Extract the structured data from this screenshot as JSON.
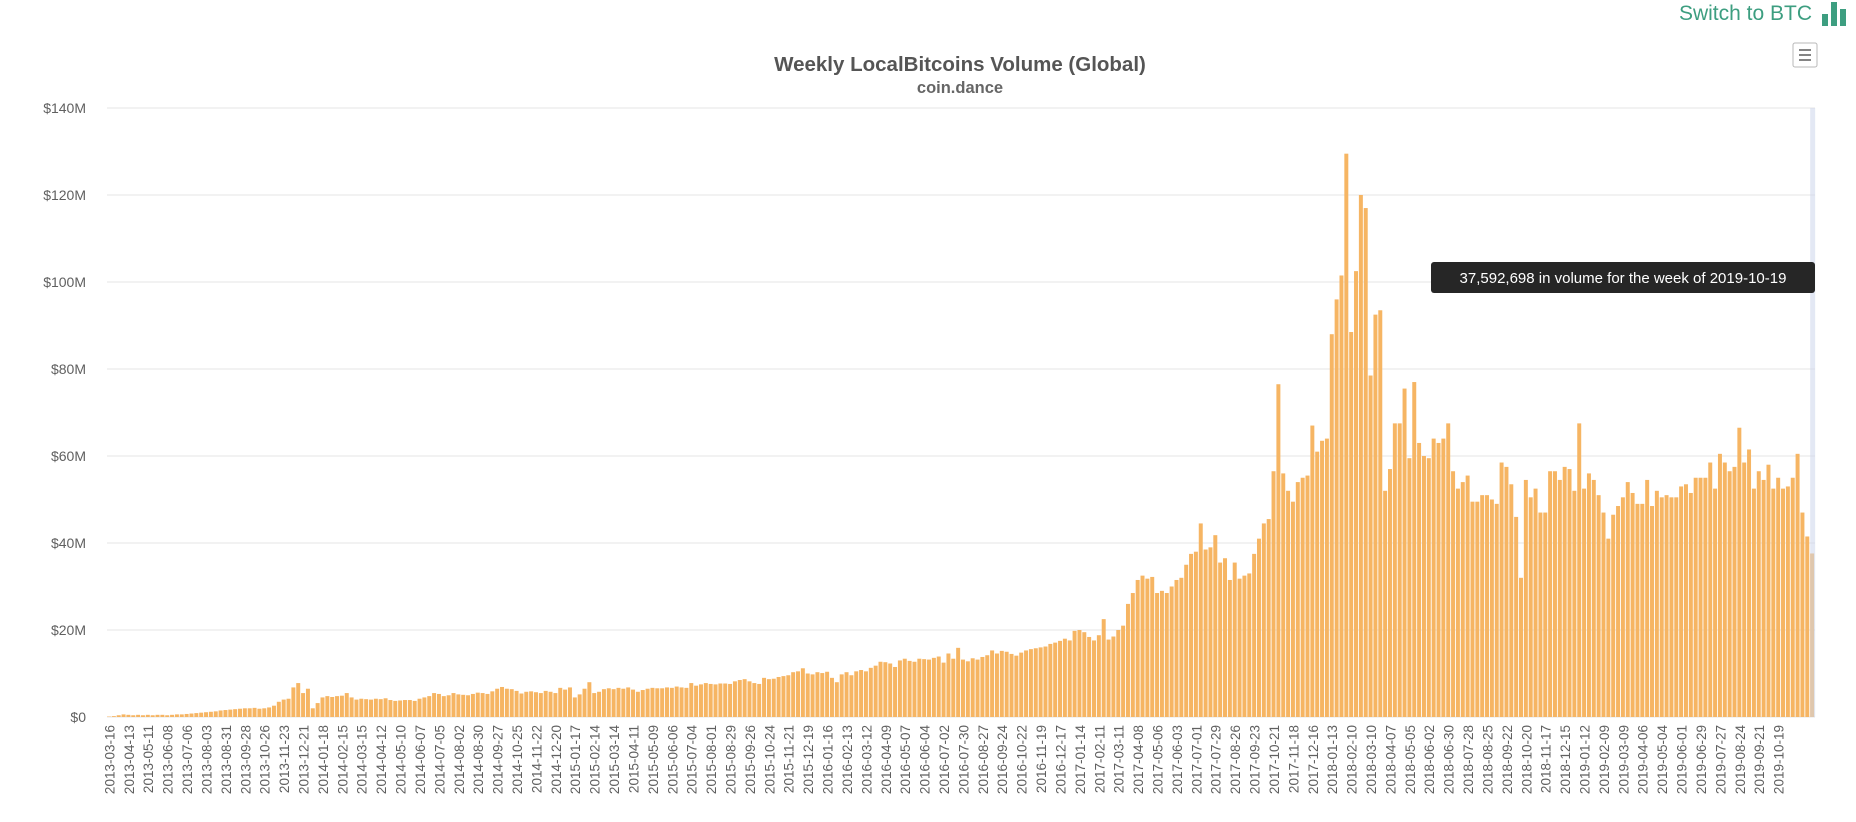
{
  "header": {
    "switch_label": "Switch to BTC",
    "switch_icon": "bar-chart-icon",
    "accent_color": "#3d9e80"
  },
  "menu": {
    "icon": "hamburger-menu-icon"
  },
  "chart_data": {
    "type": "bar",
    "title": "Weekly LocalBitcoins Volume (Global)",
    "subtitle": "coin.dance",
    "xlabel": "",
    "ylabel": "",
    "ylim": [
      0,
      140000000
    ],
    "y_ticks": [
      {
        "value": 0,
        "label": "$0"
      },
      {
        "value": 20000000,
        "label": "$20M"
      },
      {
        "value": 40000000,
        "label": "$40M"
      },
      {
        "value": 60000000,
        "label": "$60M"
      },
      {
        "value": 80000000,
        "label": "$80M"
      },
      {
        "value": 100000000,
        "label": "$100M"
      },
      {
        "value": 120000000,
        "label": "$120M"
      },
      {
        "value": 140000000,
        "label": "$140M"
      }
    ],
    "grid": true,
    "bar_color": "#f6b563",
    "x_start": "2013-03-16",
    "x_end": "2019-10-19",
    "x_tick_labels": [
      "2013-03-16",
      "2013-04-13",
      "2013-05-11",
      "2013-06-08",
      "2013-07-06",
      "2013-08-03",
      "2013-08-31",
      "2013-09-28",
      "2013-10-26",
      "2013-11-23",
      "2013-12-21",
      "2014-01-18",
      "2014-02-15",
      "2014-03-15",
      "2014-04-12",
      "2014-05-10",
      "2014-06-07",
      "2014-07-05",
      "2014-08-02",
      "2014-08-30",
      "2014-09-27",
      "2014-10-25",
      "2014-11-22",
      "2014-12-20",
      "2015-01-17",
      "2015-02-14",
      "2015-03-14",
      "2015-04-11",
      "2015-05-09",
      "2015-06-06",
      "2015-07-04",
      "2015-08-01",
      "2015-08-29",
      "2015-09-26",
      "2015-10-24",
      "2015-11-21",
      "2015-12-19",
      "2016-01-16",
      "2016-02-13",
      "2016-03-12",
      "2016-04-09",
      "2016-05-07",
      "2016-06-04",
      "2016-07-02",
      "2016-07-30",
      "2016-08-27",
      "2016-09-24",
      "2016-10-22",
      "2016-11-19",
      "2016-12-17",
      "2017-01-14",
      "2017-02-11",
      "2017-03-11",
      "2017-04-08",
      "2017-05-06",
      "2017-06-03",
      "2017-07-01",
      "2017-07-29",
      "2017-08-26",
      "2017-09-23",
      "2017-10-21",
      "2017-11-18",
      "2017-12-16",
      "2018-01-13",
      "2018-02-10",
      "2018-03-10",
      "2018-04-07",
      "2018-05-05",
      "2018-06-02",
      "2018-06-30",
      "2018-07-28",
      "2018-08-25",
      "2018-09-22",
      "2018-10-20",
      "2018-11-17",
      "2018-12-15",
      "2019-01-12",
      "2019-02-09",
      "2019-03-09",
      "2019-04-06",
      "2019-05-04",
      "2019-06-01",
      "2019-06-29",
      "2019-07-27",
      "2019-08-24",
      "2019-09-21",
      "2019-10-19"
    ],
    "values_millions": [
      0.1,
      0.2,
      0.4,
      0.6,
      0.5,
      0.4,
      0.5,
      0.4,
      0.5,
      0.4,
      0.5,
      0.5,
      0.4,
      0.5,
      0.6,
      0.6,
      0.7,
      0.8,
      0.9,
      1,
      1.1,
      1.2,
      1.3,
      1.5,
      1.6,
      1.7,
      1.8,
      1.9,
      2,
      2,
      2.1,
      1.9,
      2,
      2.2,
      2.6,
      3.5,
      4,
      4.2,
      6.8,
      7.8,
      5.5,
      6.5,
      2,
      3.2,
      4.5,
      4.8,
      4.6,
      4.8,
      4.9,
      5.5,
      4.5,
      4,
      4.2,
      4.1,
      4,
      4.2,
      4.1,
      4.3,
      3.9,
      3.7,
      3.8,
      3.9,
      3.9,
      3.7,
      4.2,
      4.5,
      4.8,
      5.5,
      5.3,
      4.8,
      5,
      5.5,
      5.2,
      5.1,
      5,
      5.3,
      5.6,
      5.5,
      5.3,
      5.9,
      6.5,
      6.9,
      6.5,
      6.4,
      6,
      5.4,
      5.8,
      5.9,
      5.7,
      5.5,
      6,
      5.8,
      5.5,
      6.7,
      6.3,
      6.8,
      4.5,
      5.2,
      6.5,
      8,
      5.5,
      5.8,
      6.4,
      6.6,
      6.4,
      6.7,
      6.5,
      6.8,
      6.3,
      5.8,
      6.2,
      6.5,
      6.7,
      6.6,
      6.6,
      6.8,
      6.7,
      7,
      6.8,
      6.7,
      7.8,
      7.2,
      7.5,
      7.8,
      7.6,
      7.5,
      7.7,
      7.7,
      7.6,
      8.2,
      8.5,
      8.7,
      8.2,
      7.8,
      7.6,
      9,
      8.7,
      8.8,
      9.2,
      9.4,
      9.6,
      10.3,
      10.5,
      11.2,
      10,
      9.8,
      10.3,
      10.1,
      10.4,
      9,
      8,
      9.8,
      10.3,
      9.6,
      10.5,
      10.8,
      10.5,
      11.3,
      11.8,
      12.7,
      12.6,
      12.3,
      11.5,
      13,
      13.4,
      12.9,
      12.7,
      13.4,
      13.3,
      13.2,
      13.6,
      13.9,
      12.5,
      14.6,
      13.4,
      15.9,
      13.2,
      12.8,
      13.5,
      13.2,
      13.8,
      14.2,
      15.3,
      14.6,
      15.2,
      15,
      14.5,
      14.1,
      14.8,
      15.3,
      15.6,
      15.8,
      16,
      16.2,
      16.8,
      17.1,
      17.5,
      18,
      17.6,
      19.8,
      20,
      19.5,
      18.4,
      17.6,
      18.8,
      22.5,
      17.8,
      18.5,
      20,
      21,
      26,
      28.5,
      31.5,
      32.5,
      31.8,
      32.2,
      28.5,
      29,
      28.5,
      30,
      31.5,
      32,
      35,
      37.5,
      38,
      44.5,
      38.5,
      39,
      41.8,
      35.5,
      36.5,
      31.5,
      35.5,
      31.8,
      32.5,
      33,
      37.5,
      41,
      44.5,
      45.5,
      56.5,
      76.5,
      56,
      52,
      49.5,
      54,
      55,
      55.5,
      67,
      61,
      63.5,
      64,
      88,
      96,
      101.5,
      129.5,
      88.5,
      102.5,
      120,
      117,
      78.5,
      92.5,
      93.5,
      52,
      57,
      67.5,
      67.5,
      75.5,
      59.5,
      77,
      63,
      60,
      59.5,
      64,
      63,
      64,
      67.5,
      56.5,
      52.5,
      54,
      55.5,
      49.5,
      49.5,
      51,
      51,
      50,
      49,
      58.5,
      57.5,
      53.5,
      46,
      32,
      54.5,
      50.5,
      52.5,
      47,
      47,
      56.5,
      56.5,
      54.5,
      57.5,
      57,
      52,
      67.5,
      52.5,
      56,
      54.5,
      51,
      47,
      41,
      46.5,
      48.5,
      50.5,
      54,
      51.5,
      49,
      49,
      54.5,
      48.5,
      52,
      50.5,
      51,
      50.5,
      50.5,
      53,
      53.5,
      51.5,
      55,
      55,
      55,
      58.5,
      52.5,
      60.5,
      58.5,
      56.5,
      57.5,
      66.5,
      58.5,
      61.5,
      52.5,
      56.5,
      54.5,
      58,
      52.5,
      55,
      52.5,
      53,
      55,
      60.5,
      47,
      41.5,
      37.592698
    ],
    "tooltip": {
      "text": "37,592,698 in volume for the week of 2019-10-19",
      "week": "2019-10-19",
      "volume": 37592698
    }
  }
}
